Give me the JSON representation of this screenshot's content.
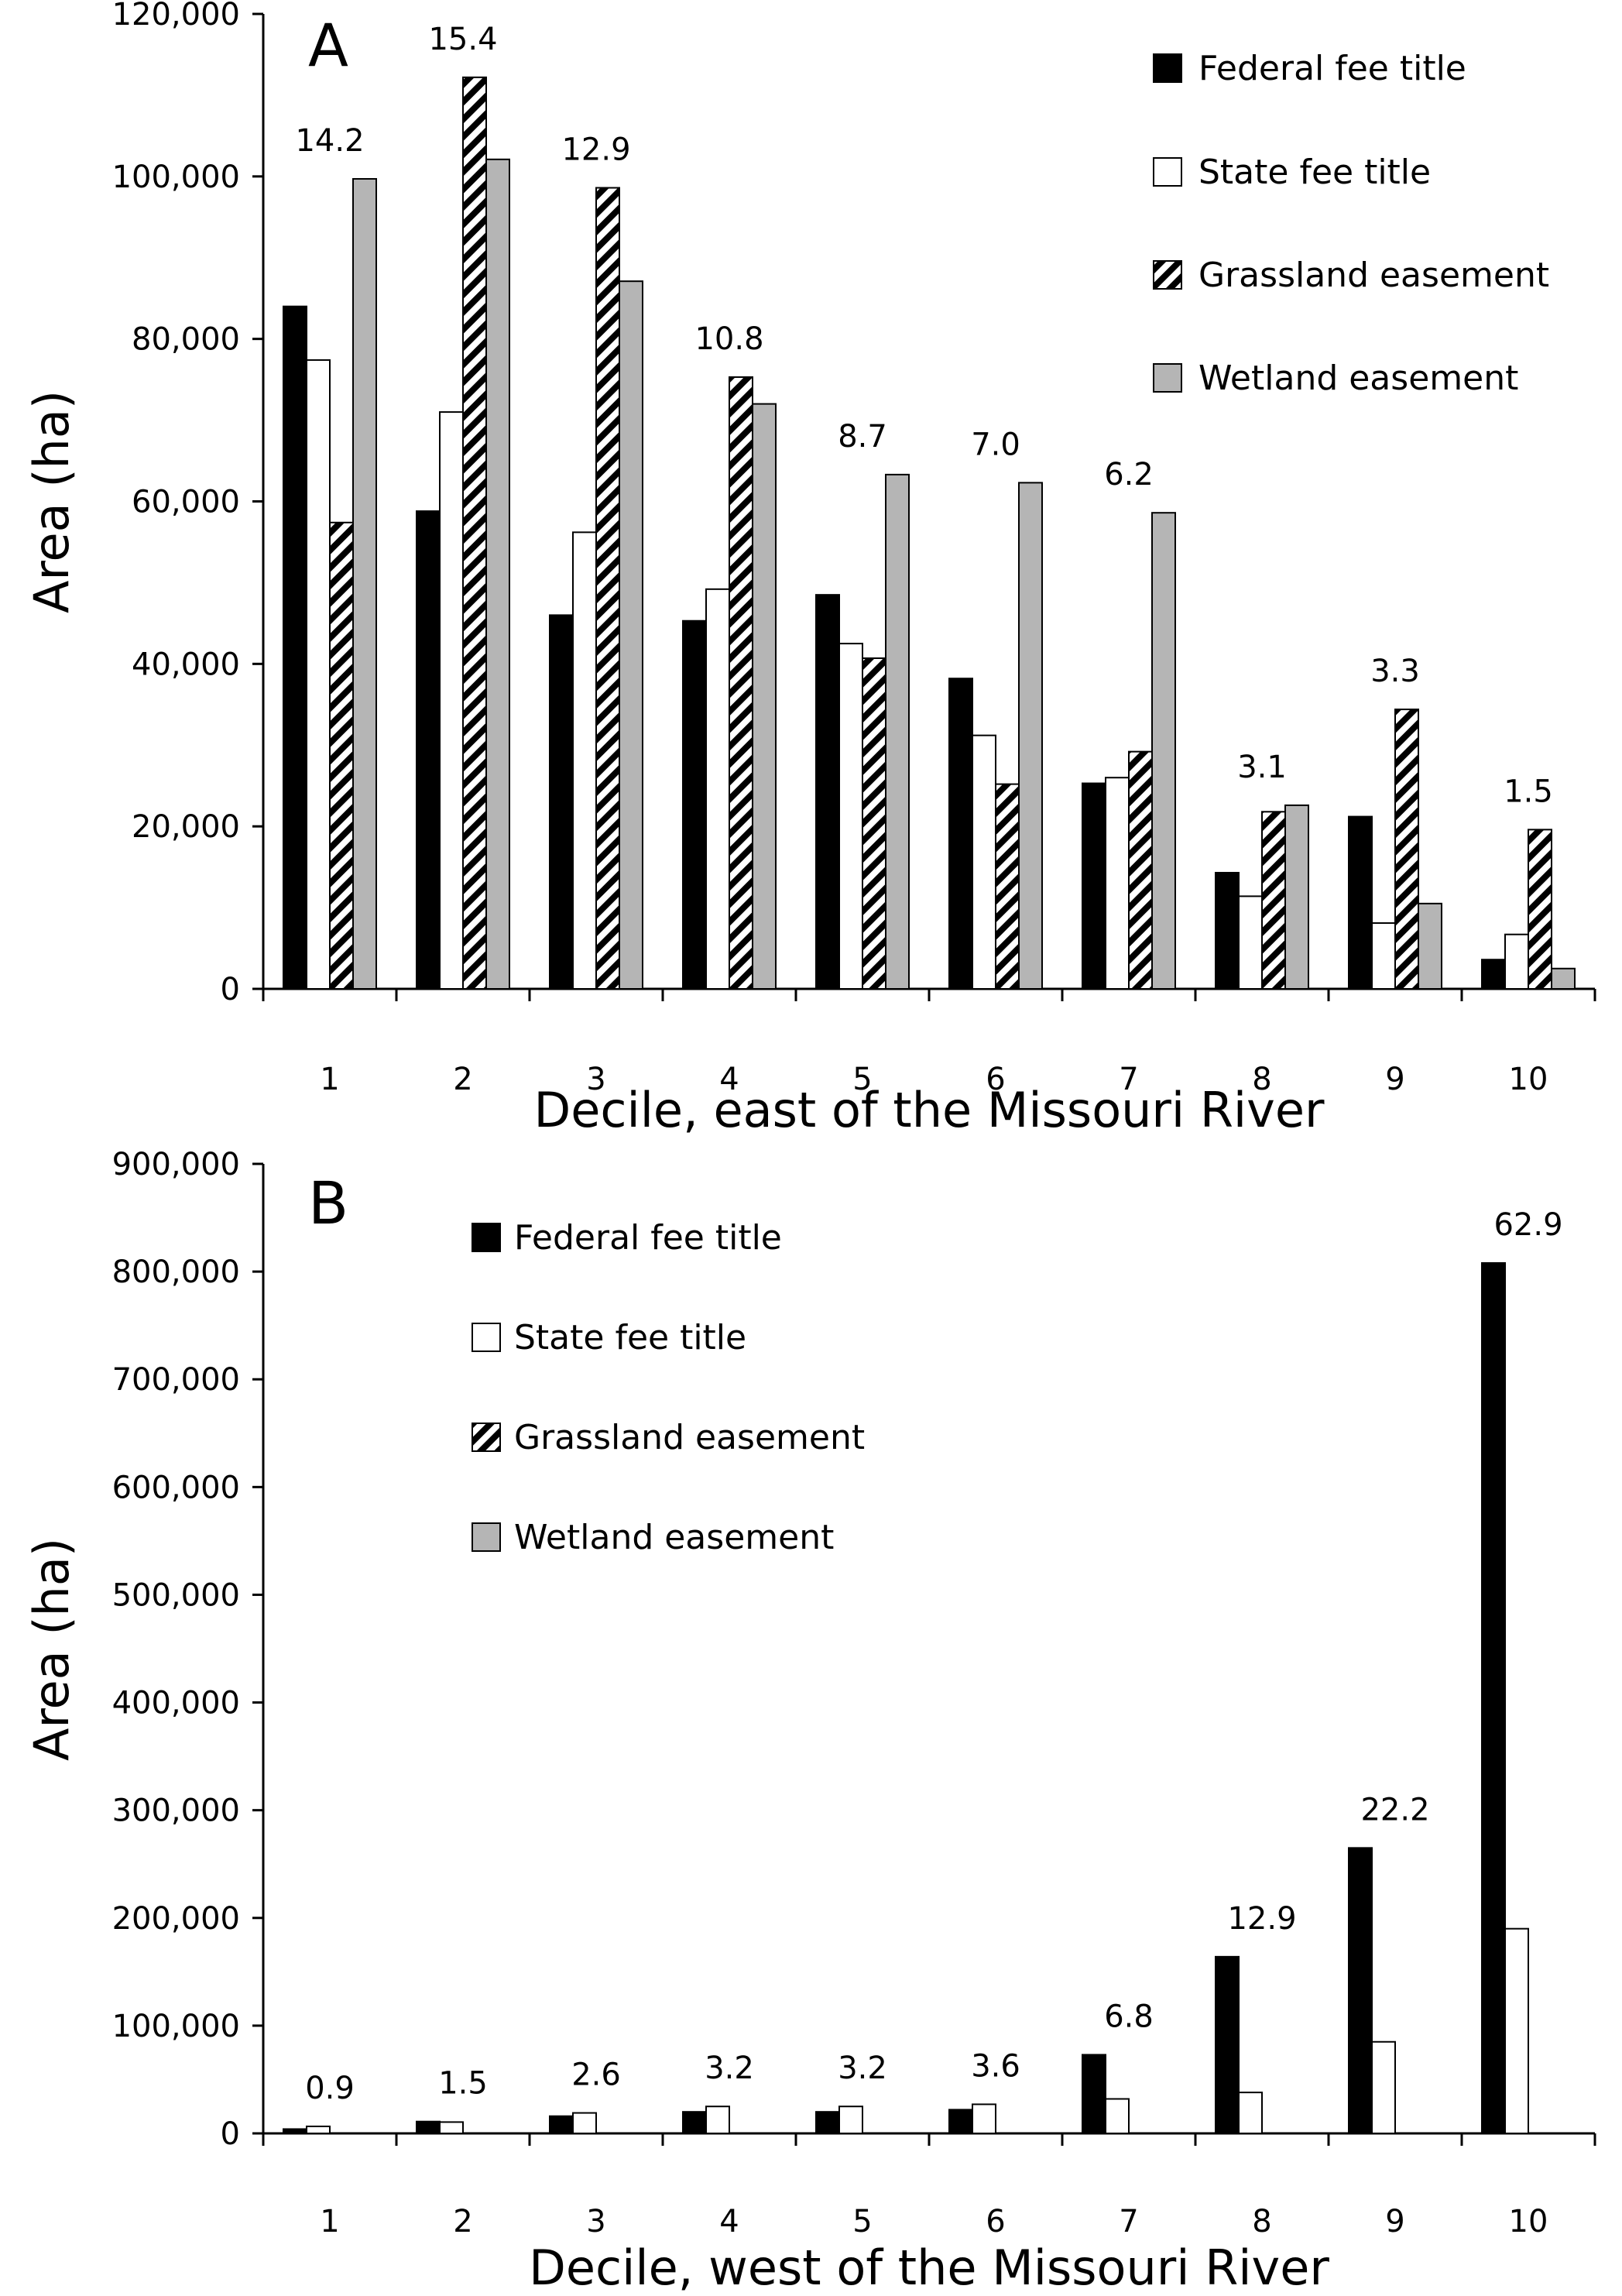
{
  "chart_data": [
    {
      "type": "bar",
      "panel_label": "A",
      "xlabel": "Decile, east of the Missouri River",
      "ylabel": "Area (ha)",
      "ylim": [
        0,
        120000
      ],
      "yticks": [
        0,
        20000,
        40000,
        60000,
        80000,
        100000,
        120000
      ],
      "ytick_labels": [
        "0",
        "20,000",
        "40,000",
        "60,000",
        "80,000",
        "100,000",
        "120,000"
      ],
      "categories": [
        "1",
        "2",
        "3",
        "4",
        "5",
        "6",
        "7",
        "8",
        "9",
        "10"
      ],
      "grid": false,
      "legend_position": "top-right",
      "series": [
        {
          "name": "Federal fee title",
          "style": "solid-black",
          "values": [
            84000,
            58800,
            46000,
            45300,
            48500,
            38200,
            25300,
            14300,
            21200,
            3600
          ]
        },
        {
          "name": "State fee title",
          "style": "white",
          "values": [
            77400,
            71000,
            56200,
            49200,
            42500,
            31200,
            26000,
            11400,
            8100,
            6700
          ]
        },
        {
          "name": "Grassland easement",
          "style": "hatched",
          "values": [
            57400,
            112200,
            98600,
            75300,
            40700,
            25200,
            29200,
            21800,
            34400,
            19600
          ]
        },
        {
          "name": "Wetland easement",
          "style": "gray",
          "values": [
            99700,
            102100,
            87100,
            72000,
            63300,
            62300,
            58600,
            22600,
            10500,
            2500
          ]
        }
      ],
      "annotations": [
        "14.2",
        "15.4",
        "12.9",
        "10.8",
        "8.7",
        "7.0",
        "6.2",
        "3.1",
        "3.3",
        "1.5"
      ]
    },
    {
      "type": "bar",
      "panel_label": "B",
      "xlabel": "Decile, west of the Missouri River",
      "ylabel": "Area (ha)",
      "ylim": [
        0,
        900000
      ],
      "yticks": [
        0,
        100000,
        200000,
        300000,
        400000,
        500000,
        600000,
        700000,
        800000,
        900000
      ],
      "ytick_labels": [
        "0",
        "100,000",
        "200,000",
        "300,000",
        "400,000",
        "500,000",
        "600,000",
        "700,000",
        "800,000",
        "900,000"
      ],
      "categories": [
        "1",
        "2",
        "3",
        "4",
        "5",
        "6",
        "7",
        "8",
        "9",
        "10"
      ],
      "grid": false,
      "legend_position": "top-left",
      "series": [
        {
          "name": "Federal fee title",
          "style": "solid-black",
          "values": [
            4000,
            11000,
            16000,
            20000,
            20000,
            22000,
            73000,
            164000,
            265000,
            808000
          ]
        },
        {
          "name": "State fee title",
          "style": "white",
          "values": [
            6500,
            10500,
            19000,
            25000,
            25000,
            27000,
            32000,
            38000,
            85000,
            190000
          ]
        },
        {
          "name": "Grassland easement",
          "style": "hatched",
          "values": [
            0,
            0,
            0,
            0,
            0,
            0,
            0,
            0,
            0,
            0
          ]
        },
        {
          "name": "Wetland easement",
          "style": "gray",
          "values": [
            0,
            0,
            0,
            0,
            0,
            0,
            0,
            0,
            0,
            0
          ]
        }
      ],
      "annotations": [
        "0.9",
        "1.5",
        "2.6",
        "3.2",
        "3.2",
        "3.6",
        "6.8",
        "12.9",
        "22.2",
        "62.9"
      ]
    }
  ]
}
